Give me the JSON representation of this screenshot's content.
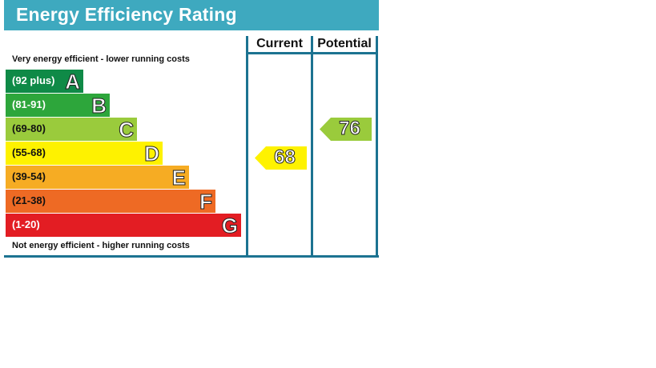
{
  "title": "Energy Efficiency Rating",
  "columns": {
    "current": "Current",
    "potential": "Potential"
  },
  "notes": {
    "top": "Very energy efficient - lower running costs",
    "bottom": "Not energy efficient - higher running costs"
  },
  "chart_data": {
    "type": "bar",
    "bands": [
      {
        "letter": "A",
        "range": "(92 plus)",
        "min": 92,
        "max": 100,
        "color": "#0f8a47",
        "text_color": "#ffffff"
      },
      {
        "letter": "B",
        "range": "(81-91)",
        "min": 81,
        "max": 91,
        "color": "#2da63b",
        "text_color": "#ffffff"
      },
      {
        "letter": "C",
        "range": "(69-80)",
        "min": 69,
        "max": 80,
        "color": "#9acb3c",
        "text_color": "#111111"
      },
      {
        "letter": "D",
        "range": "(55-68)",
        "min": 55,
        "max": 68,
        "color": "#fef200",
        "text_color": "#111111"
      },
      {
        "letter": "E",
        "range": "(39-54)",
        "min": 39,
        "max": 54,
        "color": "#f6ac23",
        "text_color": "#111111"
      },
      {
        "letter": "F",
        "range": "(21-38)",
        "min": 21,
        "max": 38,
        "color": "#ee6a24",
        "text_color": "#111111"
      },
      {
        "letter": "G",
        "range": "(1-20)",
        "min": 1,
        "max": 20,
        "color": "#e31d23",
        "text_color": "#ffffff"
      }
    ],
    "current": {
      "value": 68,
      "band": "D",
      "color": "#fef200"
    },
    "potential": {
      "value": 76,
      "band": "C",
      "color": "#9acb3c"
    }
  }
}
